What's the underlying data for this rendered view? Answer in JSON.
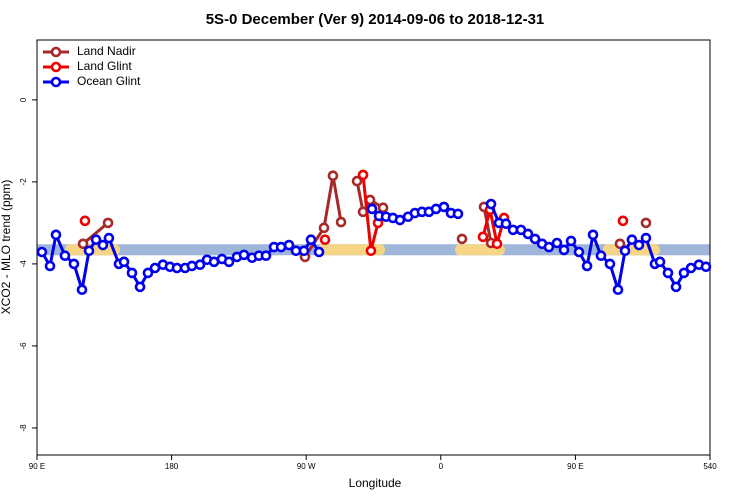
{
  "chart_data": {
    "type": "line",
    "title": "5S-0 December (Ver 9)   2014-09-06 to 2018-12-31",
    "x_label": "Longitude",
    "y_label": "XCO2 - MLO trend (ppm)",
    "xlim": [
      90,
      540
    ],
    "ylim": [
      -8.66,
      1.46
    ],
    "xticks": [
      {
        "value": 90,
        "label": "90 E"
      },
      180,
      {
        "value": 270,
        "label": "90 W"
      },
      {
        "value": 360,
        "label": "0"
      },
      {
        "value": 450,
        "label": "90 E"
      },
      540
    ],
    "yticks": [
      0,
      -2,
      -4,
      -6,
      -8
    ],
    "legend": "top-left",
    "shading": {
      "y": [
        -3.52,
        -3.79
      ],
      "color": "#9fb6da"
    },
    "highlights": {
      "color": "#f6d584",
      "x": [
        [
          108.7,
          145.5
        ],
        [
          277.9,
          322.7
        ],
        [
          369.5,
          402.9
        ],
        [
          468.4,
          506.6
        ]
      ]
    },
    "series": [
      {
        "name": "Land Nadir",
        "color": "#a52a2a",
        "x": [
          120.8,
          137.5,
          null,
          269.2,
          281.9,
          287.9,
          293.3,
          null,
          304.0,
          308.0,
          312.7,
          321.4,
          null,
          374.2,
          null,
          388.9,
          393.6,
          null,
          479.8,
          null,
          497.2
        ],
        "values": [
          -3.51,
          -3.0,
          null,
          -3.83,
          -3.12,
          -1.85,
          -2.98,
          null,
          -1.98,
          -2.73,
          -2.44,
          -2.63,
          null,
          -3.39,
          null,
          -2.61,
          -3.49,
          null,
          -3.51,
          null,
          -3.0
        ]
      },
      {
        "name": "Land Glint",
        "color": "#ee0000",
        "x": [
          122.1,
          null,
          282.6,
          null,
          308.0,
          313.3,
          318.0,
          null,
          388.2,
          392.9,
          397.6,
          402.3,
          null,
          481.8
        ],
        "values": [
          -2.95,
          null,
          -3.41,
          null,
          -1.83,
          -3.68,
          -3.0,
          null,
          -3.34,
          -2.68,
          -3.51,
          -2.88,
          null,
          -2.95
        ]
      },
      {
        "name": "Ocean Glint",
        "color": "#0000ee",
        "x": [
          93.3,
          98.7,
          102.7,
          108.7,
          114.7,
          120.1,
          124.8,
          129.5,
          134.1,
          138.1,
          144.8,
          148.2,
          153.5,
          158.9,
          164.2,
          168.9,
          174.2,
          178.9,
          183.6,
          189.0,
          193.6,
          199.0,
          203.7,
          208.4,
          213.7,
          218.4,
          223.7,
          228.4,
          233.8,
          238.4,
          243.1,
          248.5,
          253.2,
          258.5,
          263.2,
          268.5,
          273.2,
          278.6,
          null,
          314.0,
          318.7,
          323.4,
          328.0,
          332.7,
          338.1,
          342.7,
          347.4,
          352.1,
          356.8,
          362.1,
          366.8,
          371.5,
          null,
          393.6,
          398.9,
          403.6,
          408.3,
          413.6,
          418.3,
          423.0,
          427.7,
          432.3,
          437.7,
          442.4,
          447.1,
          452.4,
          457.8,
          461.8,
          467.1,
          473.1,
          478.5,
          483.2,
          487.8,
          492.5,
          497.2,
          503.2,
          506.6,
          511.9,
          517.3,
          522.6,
          527.3,
          532.6,
          537.3
        ],
        "values": [
          -3.71,
          -4.05,
          -3.29,
          -3.8,
          -4.0,
          -4.63,
          -3.68,
          -3.41,
          -3.54,
          -3.37,
          -4.0,
          -3.95,
          -4.22,
          -4.56,
          -4.22,
          -4.1,
          -4.02,
          -4.07,
          -4.1,
          -4.1,
          -4.05,
          -4.02,
          -3.9,
          -3.95,
          -3.88,
          -3.95,
          -3.83,
          -3.78,
          -3.85,
          -3.8,
          -3.8,
          -3.59,
          -3.59,
          -3.54,
          -3.68,
          -3.68,
          -3.41,
          -3.71,
          null,
          -2.66,
          -2.83,
          -2.85,
          -2.88,
          -2.93,
          -2.85,
          -2.76,
          -2.73,
          -2.73,
          -2.66,
          -2.61,
          -2.76,
          -2.78,
          null,
          -2.54,
          -3.0,
          -3.02,
          -3.17,
          -3.17,
          -3.27,
          -3.39,
          -3.51,
          -3.59,
          -3.49,
          -3.66,
          -3.44,
          -3.71,
          -4.05,
          -3.29,
          -3.8,
          -4.0,
          -4.63,
          -3.68,
          -3.41,
          -3.54,
          -3.37,
          -4.0,
          -3.95,
          -4.22,
          -4.56,
          -4.22,
          -4.1,
          -4.02,
          -4.07
        ]
      }
    ]
  }
}
